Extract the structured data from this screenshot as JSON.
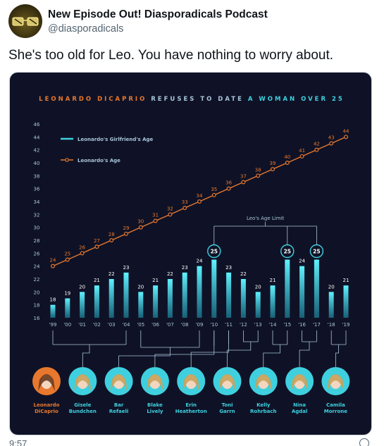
{
  "tweet": {
    "display_name": "New Episode Out! Diasporadicals Podcast",
    "handle": "@diasporadicals",
    "text": "She's too old for Leo. You have nothing to worry about.",
    "avatar_icon": "golden-glasses-avatar-icon",
    "footer_time": "9:57",
    "footer_icon": "share-icon"
  },
  "chart_data": {
    "type": "line",
    "title_parts": [
      {
        "text": "LEONARDO DICAPRIO",
        "color": "#e8782e"
      },
      {
        "text": " REFUSES TO DATE ",
        "color": "#a9c4d9"
      },
      {
        "text": "A WOMAN OVER 25",
        "color": "#3fd0e0"
      }
    ],
    "background": "#0f1226",
    "colors": {
      "leo": "#e8782e",
      "girlfriend": "#3fd0e0",
      "text": "#a9c4d9",
      "grid": "#2a2f4a"
    },
    "y_ticks": [
      16,
      18,
      20,
      22,
      24,
      26,
      28,
      30,
      32,
      34,
      36,
      38,
      40,
      42,
      44,
      46
    ],
    "ylim": [
      16,
      46
    ],
    "x_labels": [
      "'99",
      "'00",
      "'01",
      "'02",
      "'03",
      "'04",
      "'05",
      "'06",
      "'07",
      "'08",
      "'09",
      "'10",
      "'11",
      "'12",
      "'13",
      "'14",
      "'15",
      "'16",
      "'17",
      "'18",
      "'19"
    ],
    "series": [
      {
        "name": "Leonardo's Girlfriend's Age",
        "kind": "bar",
        "values": [
          18,
          19,
          20,
          21,
          22,
          23,
          20,
          21,
          22,
          23,
          24,
          25,
          23,
          22,
          20,
          21,
          25,
          24,
          25,
          20,
          21
        ]
      },
      {
        "name": "Leonardo's Age",
        "kind": "line",
        "values": [
          24,
          25,
          26,
          27,
          28,
          29,
          30,
          31,
          32,
          33,
          34,
          35,
          36,
          37,
          38,
          39,
          40,
          41,
          42,
          43,
          44
        ]
      }
    ],
    "annotation": "Leo's Age Limit",
    "limit_value": 25,
    "highlighted_years": [
      "'10",
      "'15",
      "'17"
    ],
    "people": [
      {
        "line1": "Leonardo",
        "line2": "DiCaprio",
        "from": [],
        "color": "#e8782e"
      },
      {
        "line1": "Gisele",
        "line2": "Bundchen",
        "from": [
          0,
          5
        ],
        "color": "#3fd0e0"
      },
      {
        "line1": "Bar",
        "line2": "Refaeli",
        "from": [
          6,
          10
        ],
        "color": "#3fd0e0"
      },
      {
        "line1": "Blake",
        "line2": "Lively",
        "from": [
          11,
          11
        ],
        "color": "#3fd0e0"
      },
      {
        "line1": "Erin",
        "line2": "Heatherton",
        "from": [
          12,
          12
        ],
        "color": "#3fd0e0"
      },
      {
        "line1": "Toni",
        "line2": "Garrn",
        "from": [
          13,
          14
        ],
        "color": "#3fd0e0"
      },
      {
        "line1": "Kelly",
        "line2": "Rohrbach",
        "from": [
          15,
          16
        ],
        "color": "#3fd0e0"
      },
      {
        "line1": "Nina",
        "line2": "Agdal",
        "from": [
          17,
          18
        ],
        "color": "#3fd0e0"
      },
      {
        "line1": "Camila",
        "line2": "Morrone",
        "from": [
          19,
          20
        ],
        "color": "#3fd0e0"
      }
    ]
  }
}
